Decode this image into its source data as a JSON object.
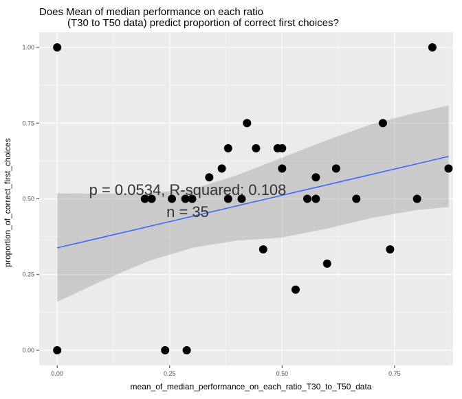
{
  "chart_data": {
    "type": "scatter",
    "title_line1": "Does Mean of median performance on each ratio",
    "title_line2": "(T30 to T50 data) predict proportion of correct first choices?",
    "xlabel": "mean_of_median_performance_on_each_ratio_T30_to_T50_data",
    "ylabel": "proportion_of_correct_first_choices",
    "xlim": [
      -0.04,
      0.88
    ],
    "ylim": [
      -0.05,
      1.05
    ],
    "x_ticks": [
      0.0,
      0.25,
      0.5,
      0.75
    ],
    "x_tick_labels": [
      "0.00",
      "0.25",
      "0.50",
      "0.75"
    ],
    "y_ticks": [
      0.0,
      0.25,
      0.5,
      0.75,
      1.0
    ],
    "y_tick_labels": [
      "0.00",
      "0.25",
      "0.50",
      "0.75",
      "1.00"
    ],
    "grid": true,
    "annotation_line1": "p = 0.0534, R-squared:  0.108",
    "annotation_line2": "n = 35",
    "points": [
      {
        "x": 0.0,
        "y": 1.0
      },
      {
        "x": 0.0,
        "y": 0.0
      },
      {
        "x": 0.195,
        "y": 0.5
      },
      {
        "x": 0.21,
        "y": 0.5
      },
      {
        "x": 0.24,
        "y": 0.0
      },
      {
        "x": 0.255,
        "y": 0.5
      },
      {
        "x": 0.285,
        "y": 0.5
      },
      {
        "x": 0.288,
        "y": 0.0
      },
      {
        "x": 0.3,
        "y": 0.5
      },
      {
        "x": 0.338,
        "y": 0.571
      },
      {
        "x": 0.366,
        "y": 0.6
      },
      {
        "x": 0.38,
        "y": 0.667
      },
      {
        "x": 0.38,
        "y": 0.5
      },
      {
        "x": 0.41,
        "y": 0.5
      },
      {
        "x": 0.422,
        "y": 0.75
      },
      {
        "x": 0.442,
        "y": 0.667
      },
      {
        "x": 0.458,
        "y": 0.333
      },
      {
        "x": 0.49,
        "y": 0.667
      },
      {
        "x": 0.5,
        "y": 0.667
      },
      {
        "x": 0.5,
        "y": 0.6
      },
      {
        "x": 0.53,
        "y": 0.2
      },
      {
        "x": 0.556,
        "y": 0.5
      },
      {
        "x": 0.575,
        "y": 0.571
      },
      {
        "x": 0.575,
        "y": 0.5
      },
      {
        "x": 0.6,
        "y": 0.286
      },
      {
        "x": 0.62,
        "y": 0.6
      },
      {
        "x": 0.665,
        "y": 0.5
      },
      {
        "x": 0.724,
        "y": 0.75
      },
      {
        "x": 0.74,
        "y": 0.333
      },
      {
        "x": 0.8,
        "y": 0.5
      },
      {
        "x": 0.834,
        "y": 1.0
      },
      {
        "x": 0.87,
        "y": 0.6
      }
    ],
    "fit_line": {
      "x": [
        0.0,
        0.87
      ],
      "y": [
        0.338,
        0.64
      ]
    },
    "confidence_band": {
      "x": [
        0.0,
        0.1,
        0.2,
        0.3,
        0.4,
        0.5,
        0.6,
        0.7,
        0.8,
        0.87
      ],
      "upper": [
        0.518,
        0.517,
        0.518,
        0.532,
        0.578,
        0.636,
        0.694,
        0.747,
        0.785,
        0.808
      ],
      "lower": [
        0.16,
        0.229,
        0.293,
        0.338,
        0.362,
        0.372,
        0.402,
        0.437,
        0.463,
        0.473
      ]
    },
    "colors": {
      "panel_bg": "#EBEBEB",
      "grid_major": "#FFFFFF",
      "point": "#000000",
      "fit_line": "#3366FF",
      "band": "#999999",
      "annotation": "#333333"
    }
  }
}
